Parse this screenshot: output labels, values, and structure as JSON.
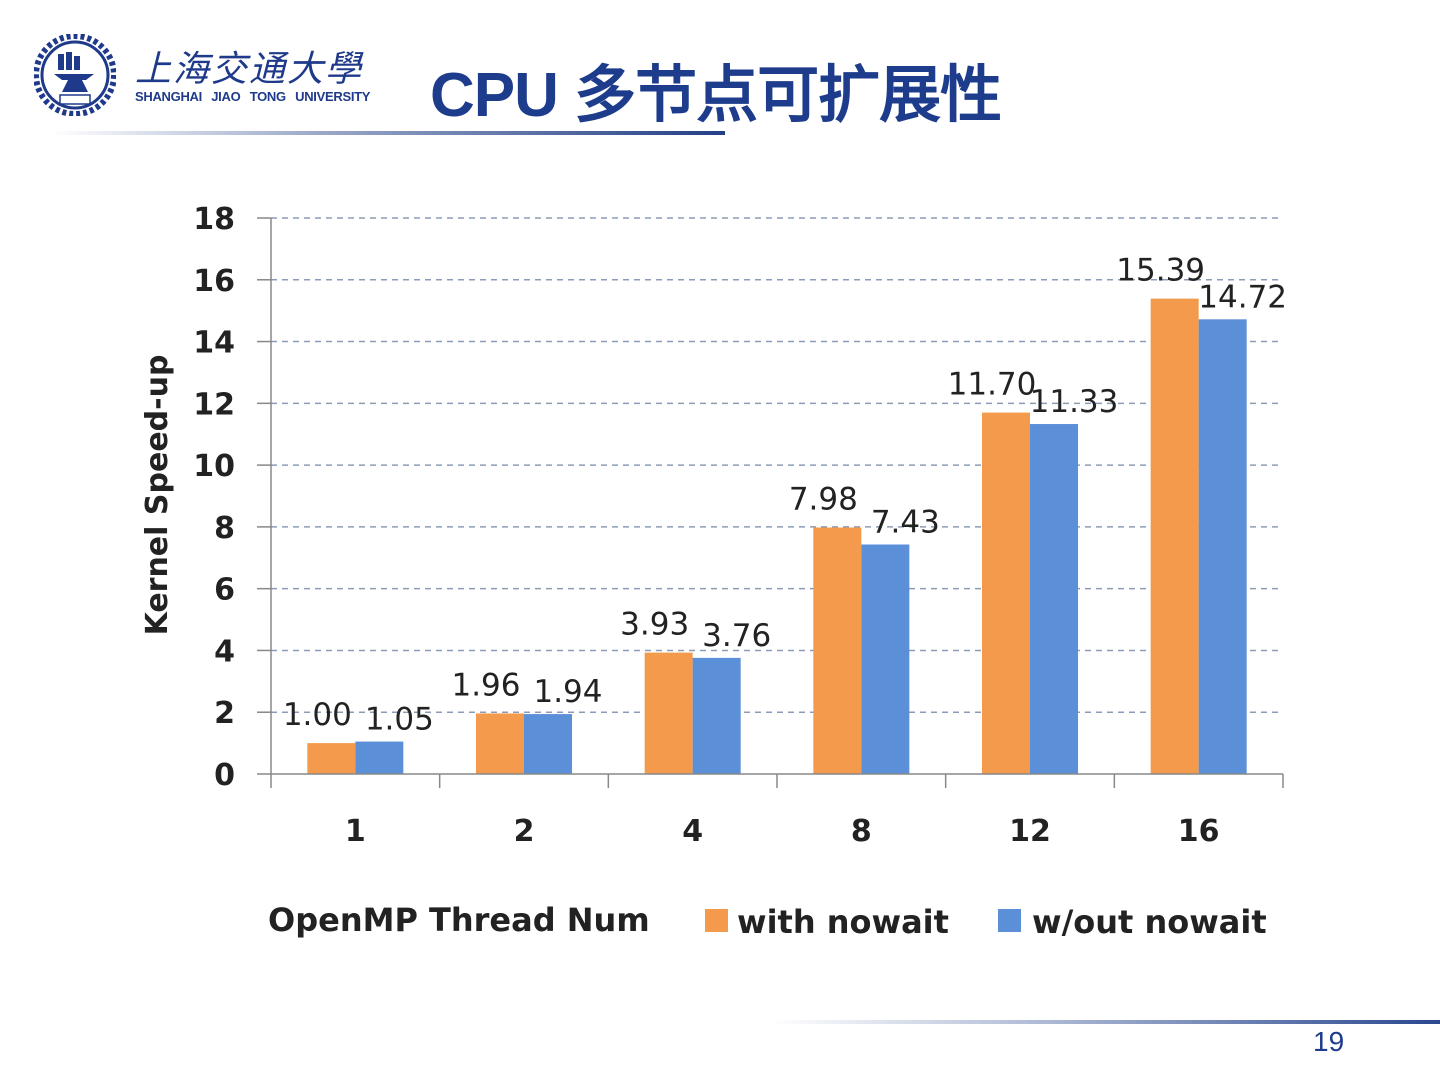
{
  "header": {
    "university_cn": "上海交通大學",
    "university_en": "SHANGHAI  JIAO TONG  UNIVERSITY",
    "logo_year": "1896",
    "title": "CPU 多节点可扩展性"
  },
  "footer": {
    "page_number": "19"
  },
  "colors": {
    "with_nowait": "#f49a4c",
    "without_nowait": "#5b8fd8",
    "title": "#1e3c8c"
  },
  "chart_data": {
    "type": "bar",
    "title": "",
    "xlabel": "OpenMP Thread Num",
    "ylabel": "Kernel Speed-up",
    "ylim": [
      0,
      18
    ],
    "yticks": [
      "0",
      "2",
      "4",
      "6",
      "8",
      "10",
      "12",
      "14",
      "16",
      "18"
    ],
    "grid": true,
    "legend_position": "bottom",
    "categories": [
      "1",
      "2",
      "4",
      "8",
      "12",
      "16"
    ],
    "series": [
      {
        "name": "with nowait",
        "values": [
          1.0,
          1.96,
          3.93,
          7.98,
          11.7,
          15.39
        ],
        "labels": [
          "1.00",
          "1.96",
          "3.93",
          "7.98",
          "11.70",
          "15.39"
        ]
      },
      {
        "name": "w/out nowait",
        "values": [
          1.05,
          1.94,
          3.76,
          7.43,
          11.33,
          14.72
        ],
        "labels": [
          "1.05",
          "1.94",
          "3.76",
          "7.43",
          "11.33",
          "14.72"
        ]
      }
    ]
  }
}
